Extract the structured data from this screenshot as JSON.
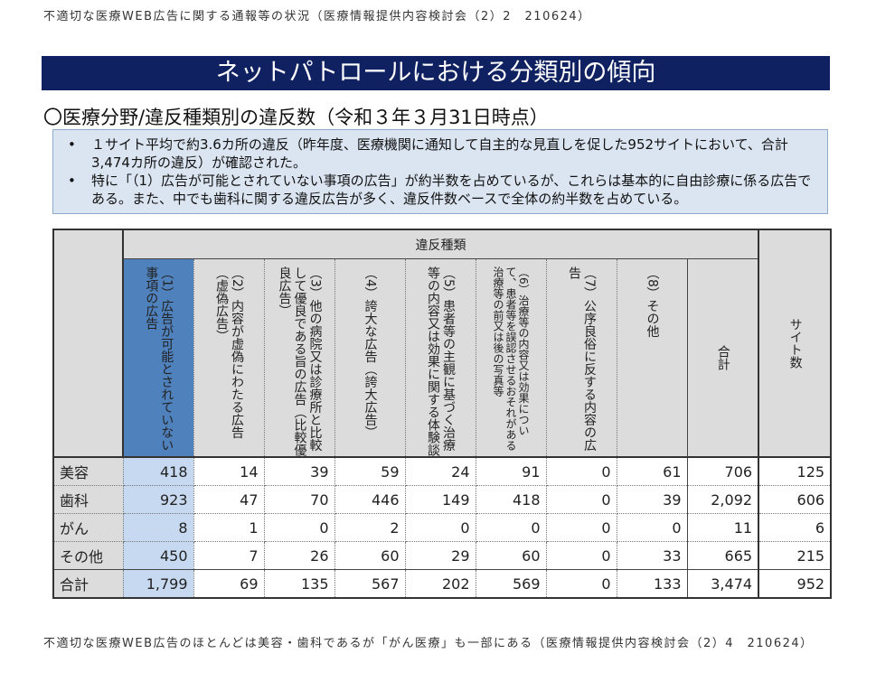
{
  "caption_top": "不適切な医療WEB広告に関する通報等の状況（医療情報提供内容検討会（2）2　210624）",
  "banner_title": "ネットパトロールにおける分類別の傾向",
  "subtitle": "〇医療分野/違反種類別の違反数（令和３年３月31日時点）",
  "notes": [
    "１サイト平均で約3.6カ所の違反（昨年度、医療機関に通知して自主的な見直しを促した952サイトにおいて、合計3,474カ所の違反）が確認された。",
    "特に「（1）広告が可能とされていない事項の広告」が約半数を占めているが、これらは基本的に自由診療に係る広告である。また、中でも歯科に関する違反広告が多く、違反件数ベースで全体の約半数を占めている。"
  ],
  "table": {
    "group_header": "違反種類",
    "columns": [
      "（1）広告が可能とされていない事項の広告",
      "（2）内容が虚偽にわたる広告（虚偽広告）",
      "（3）他の病院又は診療所と比較して優良である旨の広告（比較優良広告）",
      "（4）誇大な広告（誇大広告）",
      "（5）患者等の主観に基づく治療等の内容又は効果に関する体験談",
      "（6）治療等の内容又は効果について、患者等を誤認させるおそれがある治療等の前又は後の写真等",
      "（7）公序良俗に反する内容の広告",
      "（8）その他",
      "合計"
    ],
    "site_header": "サイト数",
    "rows": [
      {
        "label": "美容",
        "values": [
          "418",
          "14",
          "39",
          "59",
          "24",
          "91",
          "0",
          "61",
          "706"
        ],
        "sites": "125"
      },
      {
        "label": "歯科",
        "values": [
          "923",
          "47",
          "70",
          "446",
          "149",
          "418",
          "0",
          "39",
          "2,092"
        ],
        "sites": "606"
      },
      {
        "label": "がん",
        "values": [
          "8",
          "1",
          "0",
          "2",
          "0",
          "0",
          "0",
          "0",
          "11"
        ],
        "sites": "6"
      },
      {
        "label": "その他",
        "values": [
          "450",
          "7",
          "26",
          "60",
          "29",
          "60",
          "0",
          "33",
          "665"
        ],
        "sites": "215"
      },
      {
        "label": "合計",
        "values": [
          "1,799",
          "69",
          "135",
          "567",
          "202",
          "569",
          "0",
          "133",
          "3,474"
        ],
        "sites": "952"
      }
    ]
  },
  "caption_bottom": "不適切な医療WEB広告のほとんどは美容・歯科であるが「がん医療」も一部にある（医療情報提供内容検討会（2）4　210624）"
}
